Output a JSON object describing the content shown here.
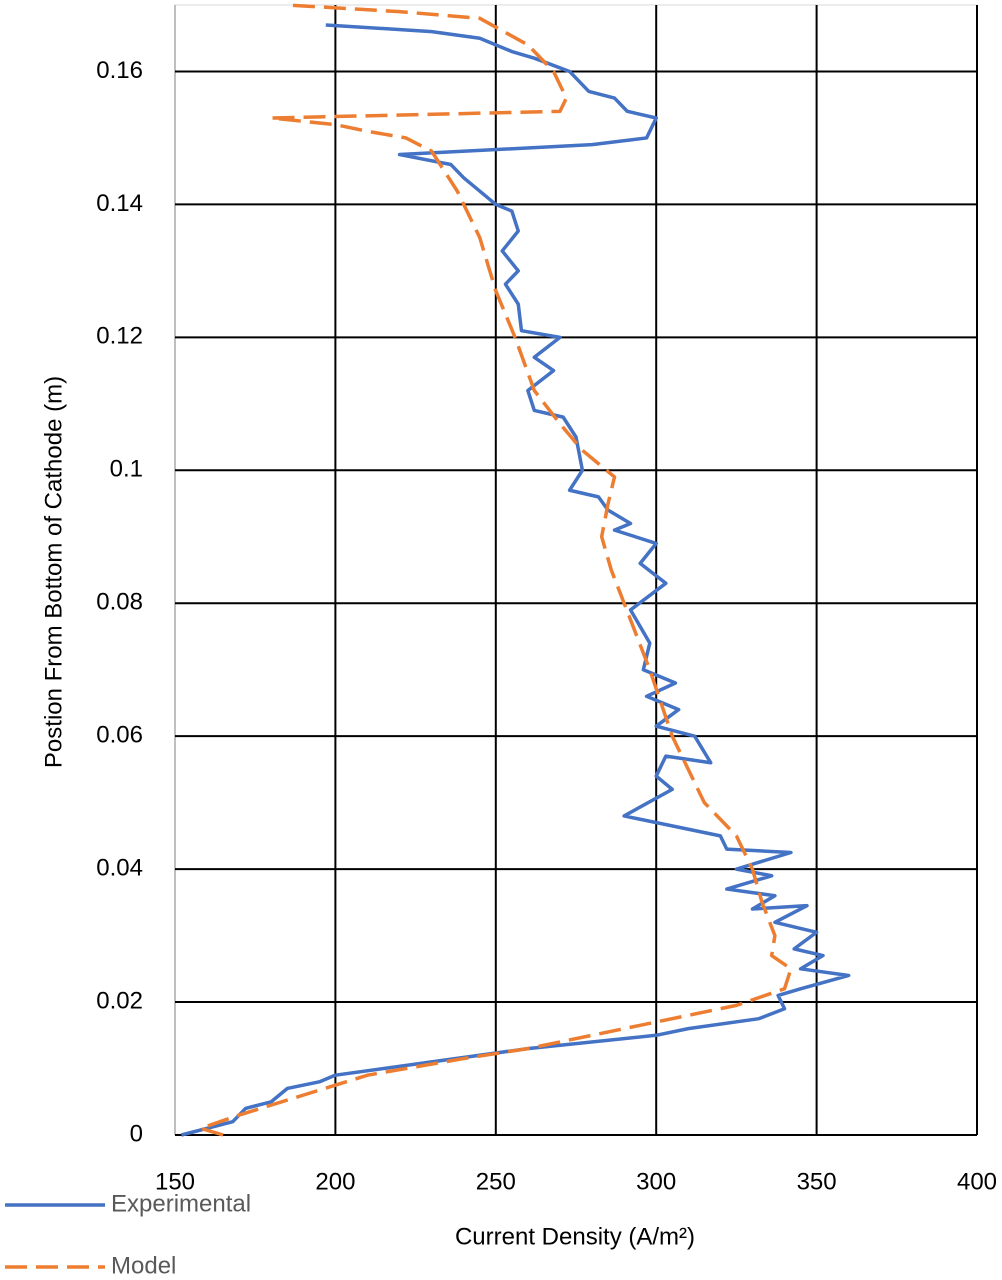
{
  "chart_data": {
    "type": "line",
    "xlabel": "Current Density (A/m²)",
    "ylabel": "Postion From Bottom of Cathode (m)",
    "xlim": [
      150,
      400
    ],
    "xticks": [
      150,
      200,
      250,
      300,
      350,
      400
    ],
    "ylim": [
      0,
      0.17
    ],
    "yticks": [
      0,
      0.02,
      0.04,
      0.06,
      0.08,
      0.1,
      0.12,
      0.14,
      0.16
    ],
    "grid": true,
    "legend": "bottom-left",
    "series": [
      {
        "name": "Experimental",
        "color": "#4472c4",
        "dash": false,
        "x": [
          152,
          168,
          172,
          180,
          185,
          195,
          200,
          230,
          260,
          300,
          310,
          332,
          340,
          338,
          345,
          360,
          345,
          352,
          343,
          350,
          337,
          347,
          330,
          337,
          322,
          336,
          325,
          342,
          322,
          320,
          290,
          305,
          300,
          303,
          317,
          312,
          300,
          307,
          297,
          306,
          296,
          298,
          292,
          303,
          295,
          300,
          287,
          292,
          285,
          282,
          273,
          277,
          275,
          271,
          262,
          260,
          268,
          262,
          270,
          258,
          257,
          253,
          257,
          252,
          257,
          255,
          250,
          240,
          236,
          220,
          280,
          297,
          300,
          291,
          287,
          279,
          273,
          262,
          255,
          245,
          230,
          197
        ],
        "values": [
          0,
          0.002,
          0.004,
          0.005,
          0.007,
          0.008,
          0.009,
          0.011,
          0.013,
          0.015,
          0.016,
          0.0175,
          0.019,
          0.021,
          0.022,
          0.024,
          0.025,
          0.027,
          0.028,
          0.0305,
          0.032,
          0.0345,
          0.034,
          0.036,
          0.037,
          0.039,
          0.04,
          0.0425,
          0.043,
          0.045,
          0.048,
          0.052,
          0.054,
          0.057,
          0.056,
          0.06,
          0.0615,
          0.064,
          0.066,
          0.068,
          0.07,
          0.074,
          0.079,
          0.083,
          0.086,
          0.089,
          0.091,
          0.092,
          0.094,
          0.096,
          0.097,
          0.1,
          0.105,
          0.108,
          0.109,
          0.112,
          0.115,
          0.117,
          0.12,
          0.121,
          0.125,
          0.128,
          0.13,
          0.133,
          0.136,
          0.139,
          0.14,
          0.144,
          0.146,
          0.1475,
          0.149,
          0.15,
          0.153,
          0.154,
          0.156,
          0.157,
          0.16,
          0.162,
          0.163,
          0.165,
          0.166,
          0.167
        ]
      },
      {
        "name": "Model",
        "color": "#ed7d31",
        "dash": true,
        "x": [
          165,
          158,
          170,
          190,
          210,
          240,
          260,
          290,
          310,
          325,
          340,
          342,
          336,
          337,
          333,
          330,
          325,
          315,
          305,
          298,
          290,
          286,
          283,
          285,
          287,
          277,
          270,
          262,
          256,
          250,
          245,
          238,
          230,
          222,
          210,
          200,
          180,
          270,
          272,
          268,
          260,
          245,
          220,
          185
        ],
        "values": [
          0,
          0.001,
          0.003,
          0.006,
          0.009,
          0.0115,
          0.013,
          0.016,
          0.018,
          0.0195,
          0.022,
          0.025,
          0.027,
          0.03,
          0.035,
          0.04,
          0.045,
          0.05,
          0.06,
          0.07,
          0.08,
          0.085,
          0.09,
          0.095,
          0.099,
          0.103,
          0.107,
          0.112,
          0.12,
          0.127,
          0.135,
          0.142,
          0.148,
          0.15,
          0.151,
          0.152,
          0.153,
          0.154,
          0.156,
          0.16,
          0.164,
          0.168,
          0.169,
          0.17
        ]
      }
    ]
  }
}
